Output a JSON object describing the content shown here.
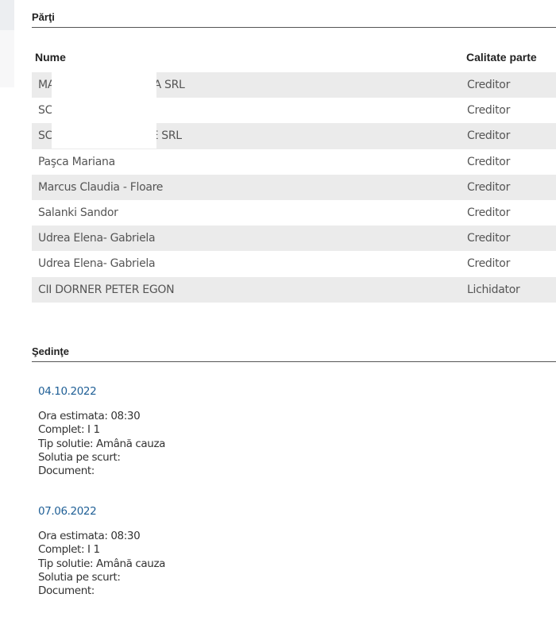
{
  "parti": {
    "title": "Părţi",
    "columns": [
      "Nume",
      "Calitate parte"
    ],
    "rows": [
      {
        "nume": "MA                              A SRL",
        "calitate": "Creditor"
      },
      {
        "nume": "SC",
        "calitate": "Creditor"
      },
      {
        "nume": "SC                              E SRL",
        "calitate": "Creditor"
      },
      {
        "nume": "Paşca Mariana",
        "calitate": "Creditor"
      },
      {
        "nume": "Marcus Claudia - Floare",
        "calitate": "Creditor"
      },
      {
        "nume": "Salanki Sandor",
        "calitate": "Creditor"
      },
      {
        "nume": "Udrea Elena- Gabriela",
        "calitate": "Creditor"
      },
      {
        "nume": "Udrea Elena- Gabriela",
        "calitate": "Creditor"
      },
      {
        "nume": "CII DORNER PETER EGON",
        "calitate": "Lichidator"
      }
    ]
  },
  "sedinte": {
    "title": "Şedinţe",
    "items": [
      {
        "date": "04.10.2022",
        "lines": [
          "Ora estimata: 08:30",
          "Complet: I 1",
          "Tip solutie: Amână cauza",
          "Solutia pe scurt:",
          "Document:"
        ]
      },
      {
        "date": "07.06.2022",
        "lines": [
          "Ora estimata: 08:30",
          "Complet: I 1",
          "Tip solutie: Amână cauza",
          "Solutia pe scurt:",
          "Document:"
        ]
      }
    ]
  },
  "colors": {
    "date_link": "#1f5f96",
    "stripe": "#ebebeb"
  }
}
